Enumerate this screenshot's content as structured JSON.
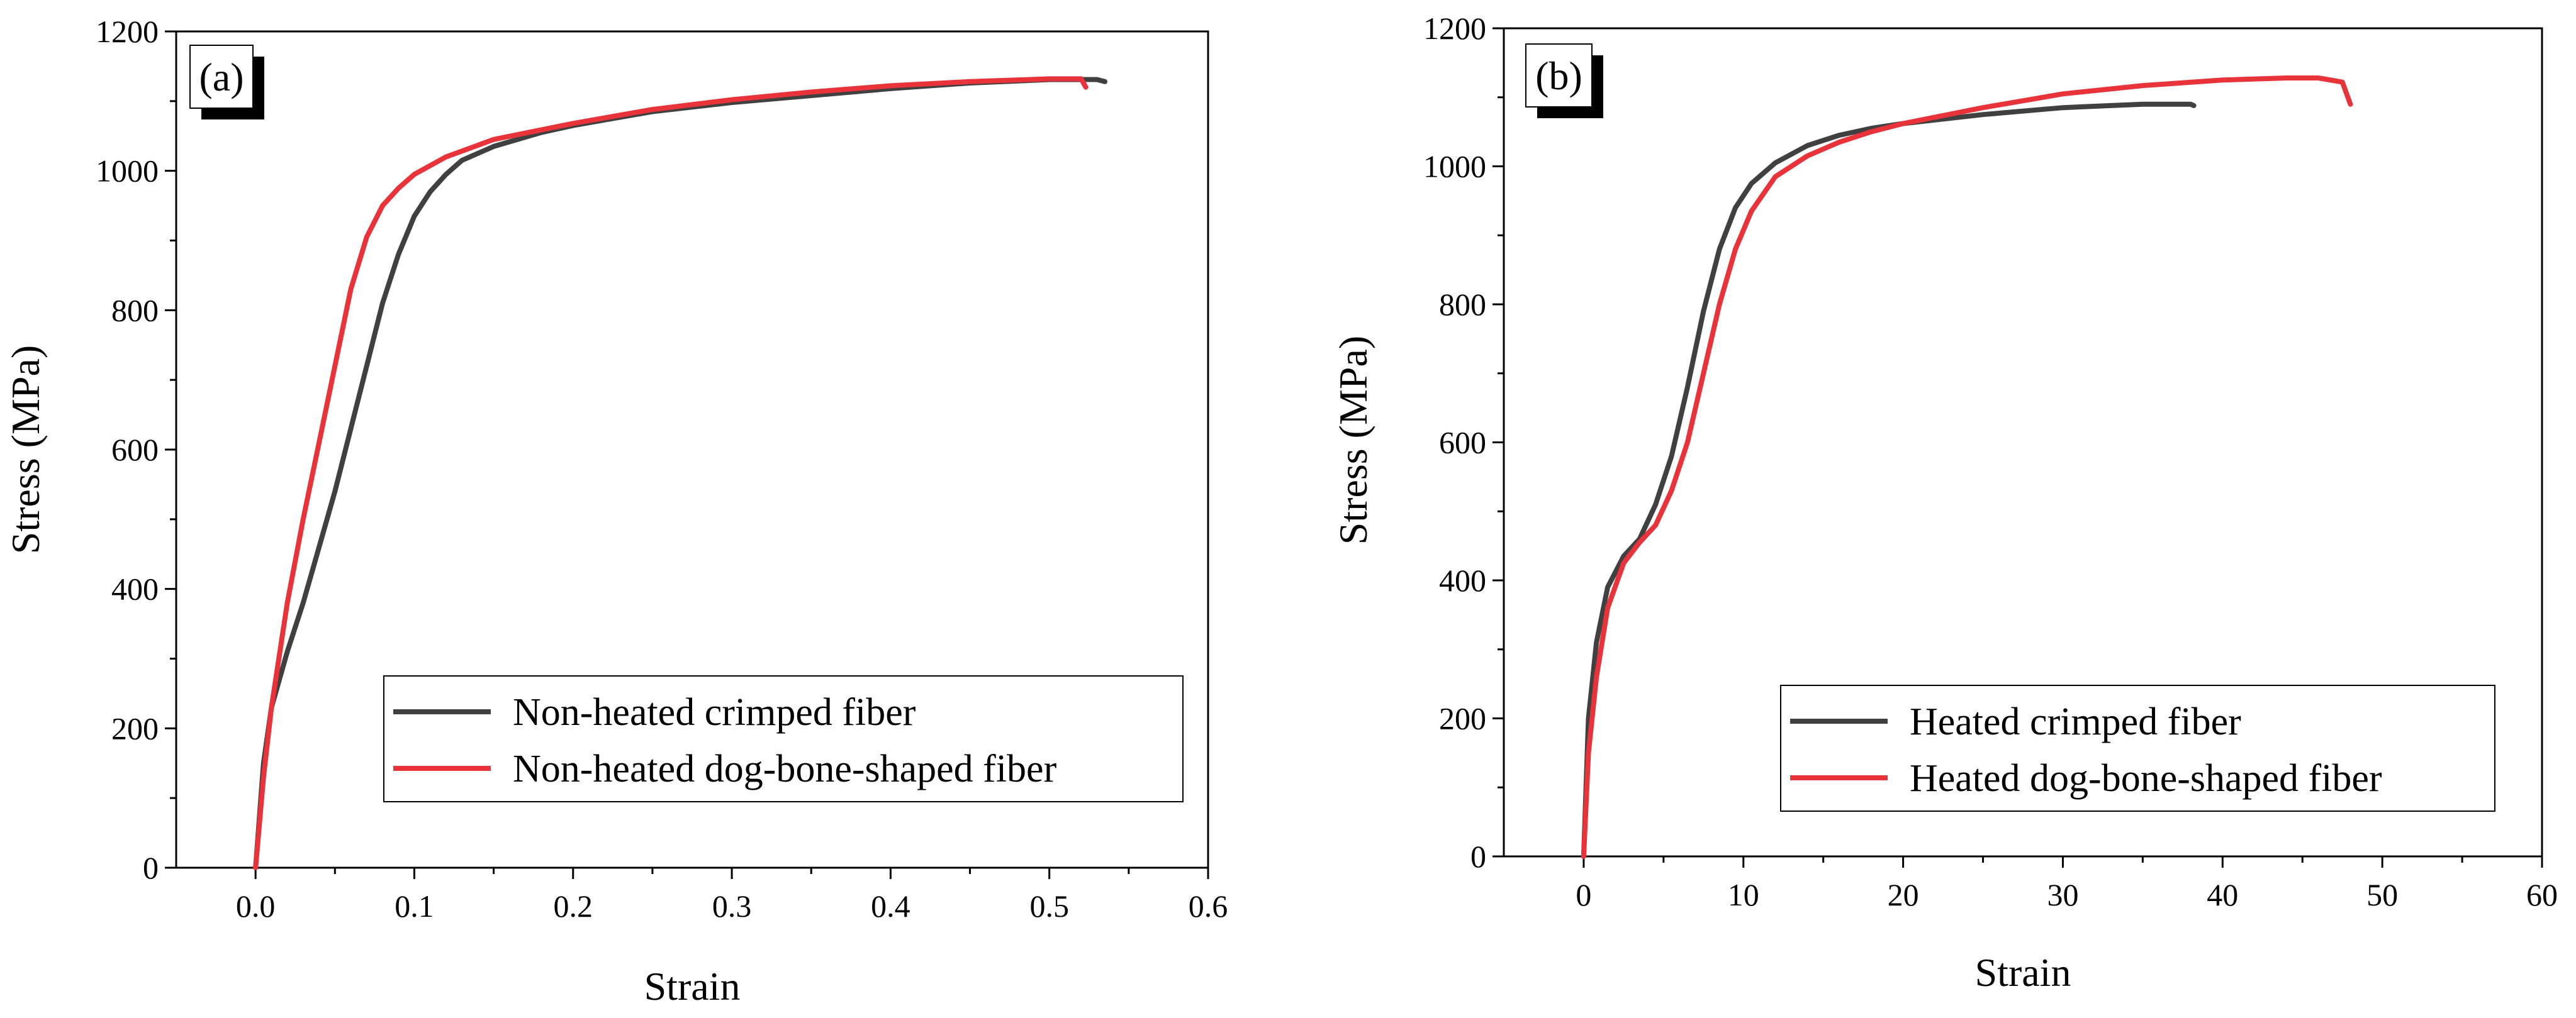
{
  "chart_data": [
    {
      "type": "line",
      "panel_label": "(a)",
      "xlabel": "Strain",
      "ylabel": "Stress (MPa)",
      "xlim": [
        -0.05,
        0.6
      ],
      "ylim": [
        0,
        1200
      ],
      "x_ticks": [
        0.0,
        0.1,
        0.2,
        0.3,
        0.4,
        0.5,
        0.6
      ],
      "x_tick_labels": [
        "0.0",
        "0.1",
        "0.2",
        "0.3",
        "0.4",
        "0.5",
        "0.6"
      ],
      "y_ticks": [
        0,
        200,
        400,
        600,
        800,
        1000,
        1200
      ],
      "y_tick_labels": [
        "0",
        "200",
        "400",
        "600",
        "800",
        "1000",
        "1200"
      ],
      "legend_position": "bottom-right",
      "series": [
        {
          "name": "Non-heated crimped fiber",
          "color": "#404040",
          "points": [
            [
              0,
              0
            ],
            [
              0.005,
              150
            ],
            [
              0.01,
              230
            ],
            [
              0.02,
              310
            ],
            [
              0.03,
              380
            ],
            [
              0.04,
              460
            ],
            [
              0.05,
              540
            ],
            [
              0.06,
              630
            ],
            [
              0.07,
              720
            ],
            [
              0.08,
              810
            ],
            [
              0.09,
              880
            ],
            [
              0.1,
              935
            ],
            [
              0.11,
              970
            ],
            [
              0.12,
              995
            ],
            [
              0.13,
              1015
            ],
            [
              0.15,
              1035
            ],
            [
              0.18,
              1055
            ],
            [
              0.2,
              1065
            ],
            [
              0.25,
              1085
            ],
            [
              0.3,
              1098
            ],
            [
              0.35,
              1108
            ],
            [
              0.4,
              1118
            ],
            [
              0.45,
              1126
            ],
            [
              0.5,
              1131
            ],
            [
              0.53,
              1131
            ],
            [
              0.535,
              1128
            ]
          ]
        },
        {
          "name": "Non-heated dog-bone-shaped fiber",
          "color": "#e8333a",
          "points": [
            [
              0,
              0
            ],
            [
              0.005,
              130
            ],
            [
              0.01,
              230
            ],
            [
              0.02,
              380
            ],
            [
              0.03,
              500
            ],
            [
              0.04,
              610
            ],
            [
              0.05,
              720
            ],
            [
              0.06,
              830
            ],
            [
              0.07,
              905
            ],
            [
              0.08,
              950
            ],
            [
              0.09,
              975
            ],
            [
              0.1,
              995
            ],
            [
              0.12,
              1020
            ],
            [
              0.15,
              1045
            ],
            [
              0.2,
              1068
            ],
            [
              0.25,
              1088
            ],
            [
              0.3,
              1102
            ],
            [
              0.35,
              1113
            ],
            [
              0.4,
              1122
            ],
            [
              0.45,
              1128
            ],
            [
              0.5,
              1132
            ],
            [
              0.52,
              1132
            ],
            [
              0.523,
              1120
            ]
          ]
        }
      ]
    },
    {
      "type": "line",
      "panel_label": "(b)",
      "xlabel": "Strain",
      "ylabel": "Stress (MPa)",
      "xlim": [
        -5,
        60
      ],
      "ylim": [
        0,
        1200
      ],
      "x_ticks": [
        0,
        10,
        20,
        30,
        40,
        50,
        60
      ],
      "x_tick_labels": [
        "0",
        "10",
        "20",
        "30",
        "40",
        "50",
        "60"
      ],
      "y_ticks": [
        0,
        200,
        400,
        600,
        800,
        1000,
        1200
      ],
      "y_tick_labels": [
        "0",
        "200",
        "400",
        "600",
        "800",
        "1000",
        "1200"
      ],
      "legend_position": "bottom-right",
      "series": [
        {
          "name": "Heated crimped fiber",
          "color": "#404040",
          "points": [
            [
              0,
              0
            ],
            [
              0.3,
              200
            ],
            [
              0.8,
              310
            ],
            [
              1.5,
              390
            ],
            [
              2.5,
              435
            ],
            [
              3.5,
              460
            ],
            [
              4.5,
              510
            ],
            [
              5.5,
              580
            ],
            [
              6.5,
              680
            ],
            [
              7.5,
              790
            ],
            [
              8.5,
              880
            ],
            [
              9.5,
              940
            ],
            [
              10.5,
              975
            ],
            [
              12,
              1005
            ],
            [
              14,
              1030
            ],
            [
              16,
              1045
            ],
            [
              18,
              1055
            ],
            [
              20,
              1062
            ],
            [
              25,
              1075
            ],
            [
              30,
              1085
            ],
            [
              35,
              1090
            ],
            [
              38,
              1090
            ],
            [
              38.2,
              1088
            ]
          ]
        },
        {
          "name": "Heated dog-bone-shaped fiber",
          "color": "#e8333a",
          "points": [
            [
              0,
              0
            ],
            [
              0.3,
              150
            ],
            [
              0.8,
              260
            ],
            [
              1.5,
              360
            ],
            [
              2.5,
              425
            ],
            [
              3.5,
              455
            ],
            [
              4.5,
              480
            ],
            [
              5.5,
              530
            ],
            [
              6.5,
              600
            ],
            [
              7.5,
              700
            ],
            [
              8.5,
              800
            ],
            [
              9.5,
              880
            ],
            [
              10.5,
              935
            ],
            [
              12,
              985
            ],
            [
              14,
              1015
            ],
            [
              16,
              1035
            ],
            [
              18,
              1050
            ],
            [
              20,
              1062
            ],
            [
              25,
              1085
            ],
            [
              30,
              1105
            ],
            [
              35,
              1117
            ],
            [
              40,
              1125
            ],
            [
              44,
              1128
            ],
            [
              46,
              1128
            ],
            [
              47.5,
              1122
            ],
            [
              48,
              1090
            ]
          ]
        }
      ]
    }
  ]
}
